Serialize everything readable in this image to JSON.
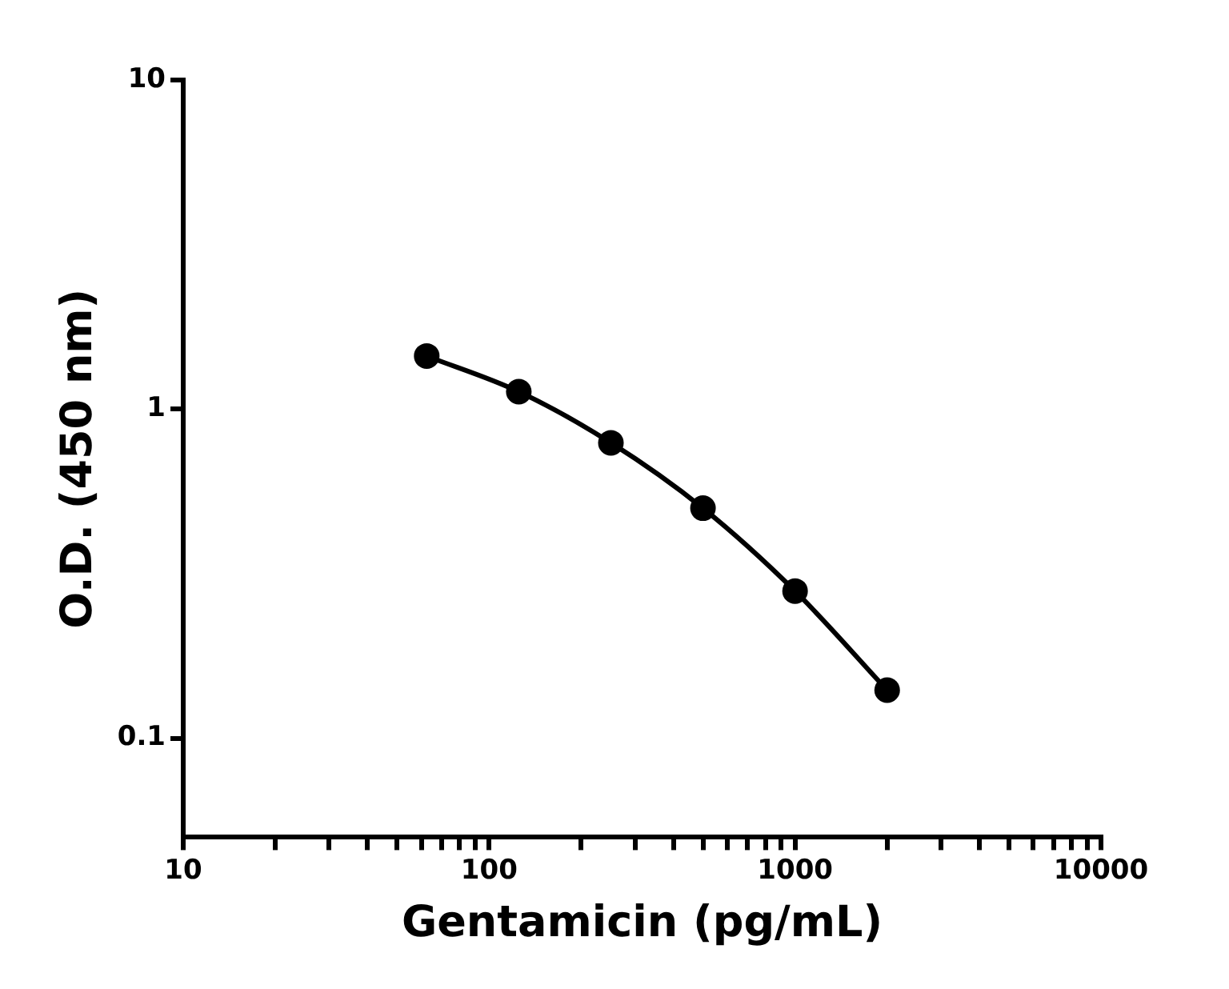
{
  "chart_data": {
    "type": "line",
    "xlabel": "Gentamicin (pg/mL)",
    "ylabel": "O.D. (450 nm)",
    "log": "xy",
    "grid": false,
    "legend": false,
    "marker": "circle",
    "line_style": "solid",
    "x": [
      62.5,
      125,
      250,
      500,
      1000,
      2000
    ],
    "series": [
      {
        "color": "#000000",
        "values": [
          1.45,
          1.13,
          0.79,
          0.5,
          0.28,
          0.14
        ]
      }
    ],
    "xlim": [
      10,
      10000
    ],
    "xticks": [
      10,
      {
        "value": 20,
        "label": null
      },
      {
        "value": 30,
        "label": null
      },
      {
        "value": 40,
        "label": null
      },
      {
        "value": 50,
        "label": null
      },
      {
        "value": 60,
        "label": null
      },
      {
        "value": 70,
        "label": null
      },
      {
        "value": 80,
        "label": null
      },
      {
        "value": 90,
        "label": null
      },
      100,
      {
        "value": 200,
        "label": null
      },
      {
        "value": 300,
        "label": null
      },
      {
        "value": 400,
        "label": null
      },
      {
        "value": 500,
        "label": null
      },
      {
        "value": 600,
        "label": null
      },
      {
        "value": 700,
        "label": null
      },
      {
        "value": 800,
        "label": null
      },
      {
        "value": 900,
        "label": null
      },
      1000,
      {
        "value": 2000,
        "label": null
      },
      {
        "value": 3000,
        "label": null
      },
      {
        "value": 4000,
        "label": null
      },
      {
        "value": 5000,
        "label": null
      },
      {
        "value": 6000,
        "label": null
      },
      {
        "value": 7000,
        "label": null
      },
      {
        "value": 8000,
        "label": null
      },
      {
        "value": 9000,
        "label": null
      },
      10000
    ],
    "ylim": [
      0.05,
      10
    ],
    "yticks": [
      0.1,
      1,
      10
    ]
  }
}
